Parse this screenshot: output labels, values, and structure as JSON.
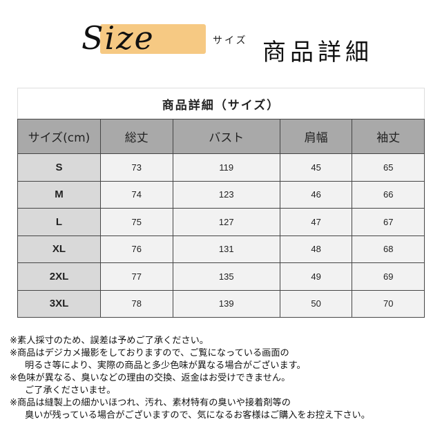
{
  "banner": {
    "logo": "Size",
    "kana": "サイズ",
    "title": "商品詳細",
    "highlight_color": "#f6c983"
  },
  "table": {
    "caption": "商品詳細（サイズ）",
    "headers": [
      "サイズ(cm)",
      "総丈",
      "バスト",
      "肩幅",
      "袖丈"
    ],
    "rows": [
      [
        "S",
        "73",
        "119",
        "45",
        "65"
      ],
      [
        "M",
        "74",
        "123",
        "46",
        "66"
      ],
      [
        "L",
        "75",
        "127",
        "47",
        "67"
      ],
      [
        "XL",
        "76",
        "131",
        "48",
        "68"
      ],
      [
        "2XL",
        "77",
        "135",
        "49",
        "69"
      ],
      [
        "3XL",
        "78",
        "139",
        "50",
        "70"
      ]
    ],
    "colors": {
      "header": "#a9a9a9",
      "size_col": "#d9d9d9",
      "cell": "#f2f2f2"
    }
  },
  "notes": [
    "※素人採寸のため、誤差は予めご了承ください。",
    "※商品はデジカメ撮影をしておりますので、ご覧になっている画面の",
    "明るさ等により、実際の商品と多少色味が異なる場合がございます。",
    "※色味が異なる、臭いなどの理由の交換、返金はお受けできません。",
    "ご了承くださいませ。",
    "※商品は縫製上の細かいほつれ、汚れ、素材特有の臭いや接着剤等の",
    "臭いが残っている場合がございますので、気になるお客様はご購入をお控え下さい。"
  ]
}
